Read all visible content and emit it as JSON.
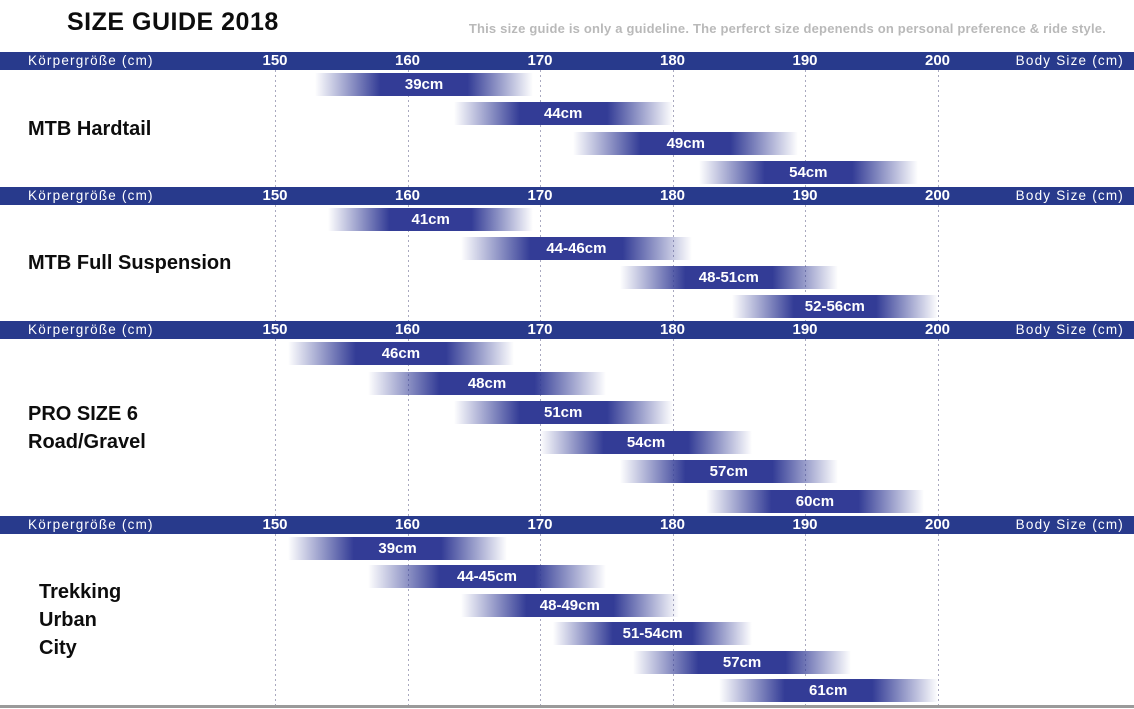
{
  "title": "SIZE GUIDE 2018",
  "disclaimer": "This size guide is only a guideline. The perferct size depenends on personal preference & ride style.",
  "axis": {
    "left_label": "Körpergröße (cm)",
    "right_label": "Body Size (cm)",
    "ticks": [
      "150",
      "160",
      "170",
      "180",
      "190",
      "200"
    ]
  },
  "colors": {
    "band_blue": "#283a8c",
    "bar_blue": "#333c96",
    "grid_dot": "#a9a9bf",
    "title_black": "#0d0d0d",
    "disclaimer_gray": "#b9b9b9",
    "bottom_line_gray": "#9a9a9a"
  },
  "chart_data": {
    "type": "bar",
    "subtype": "horizontal-range-bars",
    "title": "SIZE GUIDE 2018",
    "x_axis_label_left": "Körpergröße (cm)",
    "x_axis_label_right": "Body Size (cm)",
    "x_ticks": [
      150,
      160,
      170,
      180,
      190,
      200
    ],
    "x_range": [
      150,
      200
    ],
    "grid": true,
    "legend": "none",
    "sections": [
      {
        "name_lines": [
          "MTB Hardtail"
        ],
        "bars": [
          {
            "label": "39cm",
            "from": 153,
            "to": 169.5
          },
          {
            "label": "44cm",
            "from": 163.5,
            "to": 180
          },
          {
            "label": "49cm",
            "from": 172.5,
            "to": 189.5
          },
          {
            "label": "54cm",
            "from": 182,
            "to": 198.5
          }
        ]
      },
      {
        "name_lines": [
          "MTB Full Suspension"
        ],
        "bars": [
          {
            "label": "41cm",
            "from": 154,
            "to": 169.5
          },
          {
            "label": "44-46cm",
            "from": 164,
            "to": 181.5
          },
          {
            "label": "48-51cm",
            "from": 176,
            "to": 192.5
          },
          {
            "label": "52-56cm",
            "from": 184.5,
            "to": 200
          }
        ]
      },
      {
        "name_lines": [
          "PRO SIZE 6",
          "Road/Gravel"
        ],
        "bars": [
          {
            "label": "46cm",
            "from": 151,
            "to": 168
          },
          {
            "label": "48cm",
            "from": 157,
            "to": 175
          },
          {
            "label": "51cm",
            "from": 163.5,
            "to": 180
          },
          {
            "label": "54cm",
            "from": 170,
            "to": 186
          },
          {
            "label": "57cm",
            "from": 176,
            "to": 192.5
          },
          {
            "label": "60cm",
            "from": 182.5,
            "to": 199
          }
        ]
      },
      {
        "name_lines": [
          "Trekking",
          "Urban",
          "City"
        ],
        "bars": [
          {
            "label": "39cm",
            "from": 151,
            "to": 167.5
          },
          {
            "label": "44-45cm",
            "from": 157,
            "to": 175
          },
          {
            "label": "48-49cm",
            "from": 164,
            "to": 180.5
          },
          {
            "label": "51-54cm",
            "from": 171,
            "to": 186
          },
          {
            "label": "57cm",
            "from": 177,
            "to": 193.5
          },
          {
            "label": "61cm",
            "from": 183.5,
            "to": 200
          }
        ]
      }
    ]
  }
}
